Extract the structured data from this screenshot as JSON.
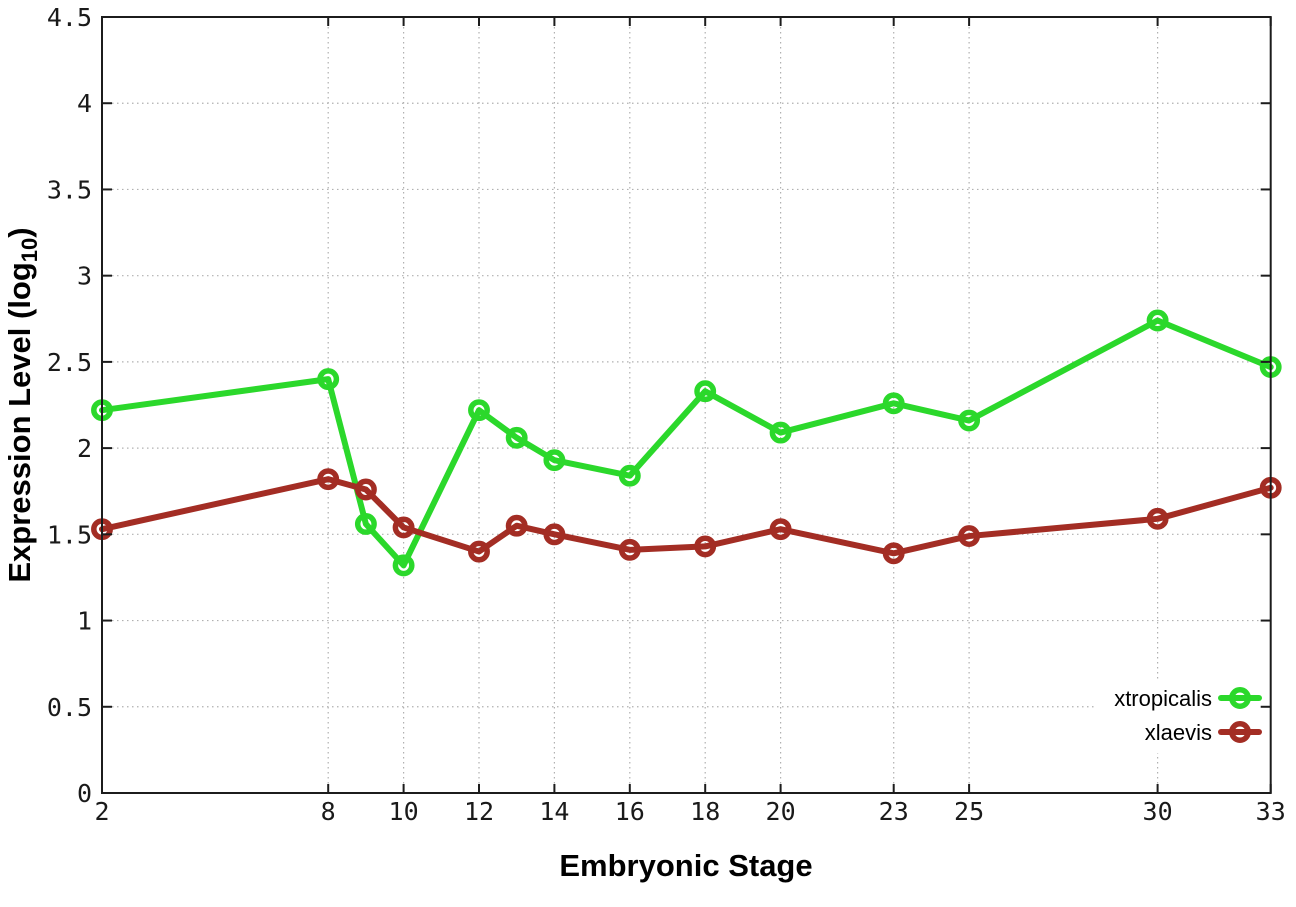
{
  "chart_data": {
    "type": "line",
    "title": "",
    "xlabel": "Embryonic Stage",
    "ylabel": "Expression Level (log10)",
    "ylabel_parts": {
      "main": "Expression Level (log",
      "sub": "10",
      "end": ")"
    },
    "xlim": [
      2,
      33
    ],
    "ylim": [
      0,
      4.5
    ],
    "x_ticks": [
      2,
      8,
      10,
      12,
      14,
      16,
      18,
      20,
      23,
      25,
      30,
      33
    ],
    "x_tick_labels": [
      "2",
      "8",
      "10",
      "12",
      "14",
      "16",
      "18",
      "20",
      "23",
      "25",
      "30",
      "33"
    ],
    "y_ticks": [
      0,
      0.5,
      1,
      1.5,
      2,
      2.5,
      3,
      3.5,
      4,
      4.5
    ],
    "y_tick_labels": [
      "0",
      "0.5",
      "1",
      "1.5",
      "2",
      "2.5",
      "3",
      "3.5",
      "4",
      "4.5"
    ],
    "grid": true,
    "legend_position": "inside-right-lower",
    "x": [
      2,
      8,
      9,
      10,
      12,
      13,
      14,
      16,
      18,
      20,
      23,
      25,
      30,
      33
    ],
    "series": [
      {
        "name": "xtropicalis",
        "color": "#2bd82b",
        "values": [
          2.22,
          2.4,
          1.56,
          1.32,
          2.22,
          2.06,
          1.93,
          1.84,
          2.33,
          2.09,
          2.26,
          2.16,
          2.74,
          2.47
        ]
      },
      {
        "name": "xlaevis",
        "color": "#a32d24",
        "values": [
          1.53,
          1.82,
          1.76,
          1.54,
          1.4,
          1.55,
          1.5,
          1.41,
          1.43,
          1.53,
          1.39,
          1.49,
          1.59,
          1.77
        ]
      }
    ],
    "colors": {
      "background": "#ffffff",
      "axis": "#1c1c1c",
      "grid": "#b0b0b0",
      "text": "#000000"
    }
  }
}
